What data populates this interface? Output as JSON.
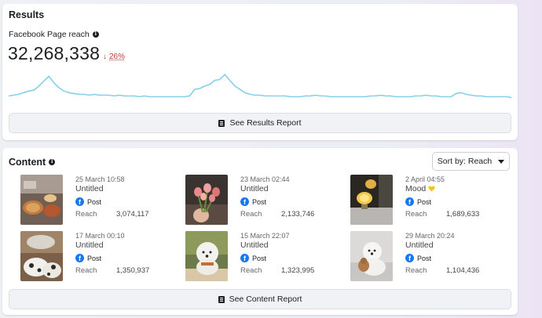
{
  "results": {
    "title": "Results",
    "metric_label": "Facebook Page reach",
    "metric_value": "32,268,338",
    "change_arrow": "↓",
    "change_pct": "26%",
    "report_button": "See Results Report",
    "chart_color": "#86cfe8",
    "change_color": "#c0392b"
  },
  "chart_data": {
    "type": "line",
    "title": "",
    "xlabel": "",
    "ylabel": "",
    "grid": false,
    "legend": "none",
    "series": [
      {
        "values": [
          10,
          11,
          12,
          14,
          16,
          17,
          22,
          28,
          34,
          26,
          20,
          16,
          14,
          13,
          12,
          12,
          11,
          12,
          11,
          11,
          11,
          10,
          11,
          10,
          10,
          10,
          9,
          10,
          9,
          9,
          9,
          9,
          9,
          9,
          9,
          9,
          10,
          18,
          19,
          22,
          24,
          29,
          30,
          36,
          29,
          22,
          18,
          14,
          12,
          11,
          11,
          10,
          10,
          10,
          10,
          10,
          9,
          9,
          9,
          10,
          10,
          11,
          10,
          10,
          9,
          9,
          9,
          9,
          9,
          9,
          9,
          9,
          10,
          10,
          11,
          10,
          10,
          9,
          9,
          9,
          9,
          10,
          10,
          11,
          10,
          10,
          9,
          9,
          9,
          13,
          14,
          12,
          11,
          10,
          10,
          9,
          9,
          9,
          9,
          9,
          8
        ]
      }
    ],
    "ylim": [
      0,
      40
    ]
  },
  "content": {
    "title": "Content",
    "sort_label": "Sort by: Reach",
    "report_button": "See Content Report",
    "reach_label": "Reach",
    "posts": [
      {
        "date": "25 March 10:58",
        "title": "Untitled",
        "type": "Post",
        "reach": "3,074,117",
        "thumb": "food-photo"
      },
      {
        "date": "23 March 02:44",
        "title": "Untitled",
        "type": "Post",
        "reach": "2,133,746",
        "thumb": "flowers-photo"
      },
      {
        "date": "2 April 04:55",
        "title": "Mood",
        "type": "Post",
        "reach": "1,689,633",
        "thumb": "lamp-photo",
        "title_icon": "yellow-heart-icon"
      },
      {
        "date": "17 March 00:10",
        "title": "Untitled",
        "type": "Post",
        "reach": "1,350,937",
        "thumb": "dogs-photo"
      },
      {
        "date": "15 March 22:07",
        "title": "Untitled",
        "type": "Post",
        "reach": "1,323,995",
        "thumb": "white-dog-photo"
      },
      {
        "date": "29 March 20:24",
        "title": "Untitled",
        "type": "Post",
        "reach": "1,104,436",
        "thumb": "pomeranian-photo"
      }
    ]
  }
}
